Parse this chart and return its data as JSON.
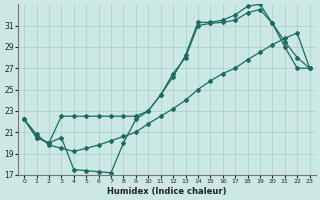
{
  "xlabel": "Humidex (Indice chaleur)",
  "bg_color": "#cce8e4",
  "grid_color": "#aaccca",
  "line_color": "#1a6b60",
  "xlim": [
    -0.5,
    23.5
  ],
  "ylim": [
    17,
    33
  ],
  "yticks": [
    17,
    19,
    21,
    23,
    25,
    27,
    29,
    31
  ],
  "xticks": [
    0,
    1,
    2,
    3,
    4,
    5,
    6,
    7,
    8,
    9,
    10,
    11,
    12,
    13,
    14,
    15,
    16,
    17,
    18,
    19,
    20,
    21,
    22,
    23
  ],
  "line1_x": [
    0,
    1,
    2,
    3,
    4,
    5,
    6,
    7,
    8,
    9,
    10,
    11,
    12,
    13,
    14,
    15,
    16,
    17,
    18,
    19,
    20,
    21,
    22,
    23
  ],
  "line1_y": [
    22.2,
    20.5,
    20.0,
    20.5,
    17.5,
    17.4,
    17.3,
    17.2,
    20.0,
    22.2,
    23.0,
    24.5,
    26.5,
    28.0,
    31.0,
    31.2,
    31.3,
    31.5,
    32.2,
    32.5,
    31.2,
    29.0,
    27.0,
    27.0
  ],
  "line2_x": [
    0,
    1,
    2,
    3,
    4,
    5,
    6,
    7,
    8,
    9,
    10,
    11,
    12,
    13,
    14,
    15,
    16,
    17,
    18,
    19,
    20,
    21,
    22,
    23
  ],
  "line2_y": [
    22.2,
    20.5,
    20.0,
    22.5,
    22.5,
    22.5,
    22.5,
    22.5,
    22.5,
    22.5,
    23.0,
    24.5,
    26.2,
    28.2,
    31.3,
    31.3,
    31.5,
    32.0,
    32.8,
    33.0,
    31.2,
    29.5,
    28.0,
    27.0
  ],
  "line3_x": [
    0,
    1,
    2,
    3,
    4,
    5,
    6,
    7,
    8,
    9,
    10,
    11,
    12,
    13,
    14,
    15,
    16,
    17,
    18,
    19,
    20,
    21,
    22,
    23
  ],
  "line3_y": [
    22.2,
    20.8,
    19.8,
    19.5,
    19.2,
    19.5,
    19.8,
    20.2,
    20.6,
    21.0,
    21.8,
    22.5,
    23.2,
    24.0,
    25.0,
    25.8,
    26.5,
    27.0,
    27.8,
    28.5,
    29.2,
    29.8,
    30.3,
    27.0
  ]
}
